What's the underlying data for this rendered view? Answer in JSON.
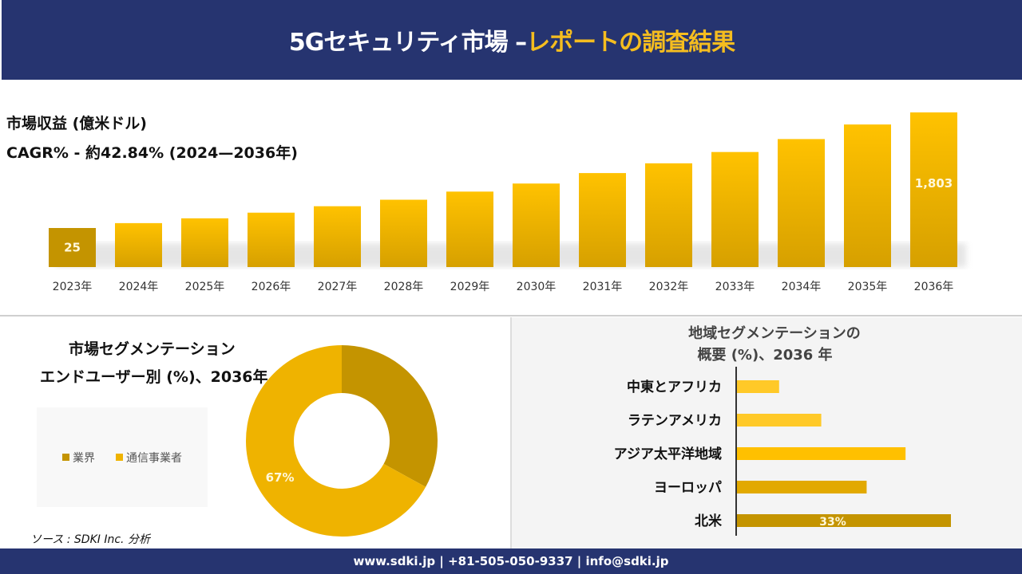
{
  "header": {
    "title_main": "5Gセキュリティ市場 –",
    "title_accent": "レポートの調査結果"
  },
  "colors": {
    "navy": "#263470",
    "accent": "#f5bd1f",
    "gold_dark": "#c49400",
    "gold": "#e0a800",
    "yellow": "#fbbf00"
  },
  "revenue": {
    "title": "市場収益 (億米ドル)",
    "cagr": "CAGR% - 約42.84% (2024—2036年)"
  },
  "chart_data": [
    {
      "type": "bar",
      "title": "市場収益 (億米ドル)",
      "categories": [
        "2023年",
        "2024年",
        "2025年",
        "2026年",
        "2027年",
        "2028年",
        "2029年",
        "2030年",
        "2031年",
        "2032年",
        "2033年",
        "2034年",
        "2035年",
        "2036年"
      ],
      "values": [
        25,
        100,
        174,
        261,
        360,
        460,
        585,
        709,
        870,
        1020,
        1194,
        1393,
        1617,
        1803
      ],
      "data_labels": {
        "0": "25",
        "13": "1,803"
      }
    },
    {
      "type": "pie",
      "title": "市場セグメンテーション エンドユーザー別 (%)、2036年",
      "slices": [
        {
          "name": "業界",
          "value": 33,
          "color": "#c49400"
        },
        {
          "name": "通信事業者",
          "value": 67,
          "color": "#efb300",
          "label": "67%"
        }
      ],
      "legend": "left"
    },
    {
      "type": "bar",
      "orientation": "horizontal",
      "title": "地域セグメンテーションの概要 (%)、2036 年",
      "categories": [
        "中東とアフリカ",
        "ラテンアメリカ",
        "アジア太平洋地域",
        "ヨーロッパ",
        "北米"
      ],
      "values": [
        6.5,
        13,
        26,
        20,
        33
      ],
      "colors": [
        "#ffc928",
        "#ffc928",
        "#ffc000",
        "#e2a900",
        "#c49400"
      ],
      "data_labels": {
        "4": "33%"
      }
    }
  ],
  "segment": {
    "title_line1": "市場セグメンテーション",
    "title_line2": "エンドユーザー別 (%)、2036年",
    "legend": [
      "業界",
      "通信事業者"
    ]
  },
  "region": {
    "title_line1": "地域セグメンテーションの",
    "title_line2": "概要 (%)、2036 年"
  },
  "source": "ソース : SDKI Inc. 分析",
  "footer": {
    "contact": "www.sdki.jp | +81-505-050-9337 | info@sdki.jp"
  }
}
